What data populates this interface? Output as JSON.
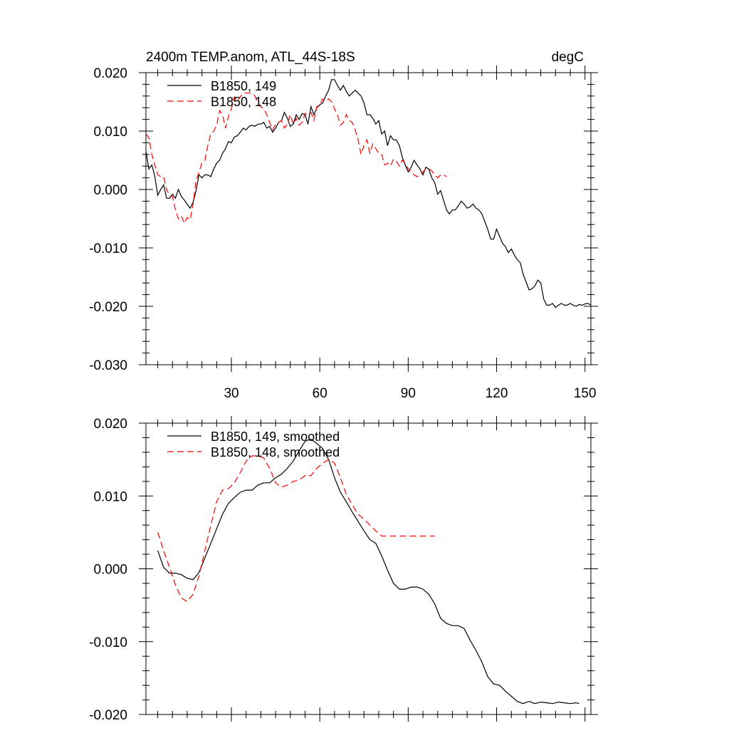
{
  "chart_data": [
    {
      "type": "line",
      "title": "2400m TEMP.anom, ATL_44S-18S",
      "units": "degC",
      "xlim": [
        1,
        152
      ],
      "ylim": [
        -0.03,
        0.02
      ],
      "xticks": [
        30,
        60,
        90,
        120,
        150
      ],
      "xtick_labels": [
        "30",
        "60",
        "90",
        "120",
        "150"
      ],
      "yticks": [
        -0.03,
        -0.02,
        -0.01,
        0.0,
        0.01,
        0.02
      ],
      "ytick_labels": [
        "-0.030",
        "-0.020",
        "-0.010",
        "0.000",
        "0.010",
        "0.020"
      ],
      "legend_position": "top-left",
      "series": [
        {
          "name": "B1850, 149",
          "color": "#000000",
          "dash": "solid",
          "x": [
            1,
            2,
            3,
            4,
            5,
            6,
            7,
            8,
            9,
            10,
            11,
            12,
            13,
            14,
            15,
            16,
            17,
            18,
            19,
            20,
            21,
            22,
            23,
            24,
            25,
            26,
            27,
            28,
            29,
            30,
            31,
            32,
            33,
            34,
            35,
            36,
            37,
            38,
            39,
            40,
            41,
            42,
            43,
            44,
            45,
            46,
            47,
            48,
            49,
            50,
            51,
            52,
            53,
            54,
            55,
            56,
            57,
            58,
            59,
            60,
            61,
            62,
            63,
            64,
            65,
            66,
            67,
            68,
            69,
            70,
            71,
            72,
            73,
            74,
            75,
            76,
            77,
            78,
            79,
            80,
            81,
            82,
            83,
            84,
            85,
            86,
            87,
            88,
            89,
            90,
            91,
            92,
            93,
            94,
            95,
            96,
            97,
            98,
            99,
            100,
            101,
            102,
            103,
            104,
            105,
            106,
            107,
            108,
            109,
            110,
            111,
            112,
            113,
            114,
            115,
            116,
            117,
            118,
            119,
            120,
            121,
            122,
            123,
            124,
            125,
            126,
            127,
            128,
            129,
            130,
            131,
            132,
            133,
            134,
            135,
            136,
            137,
            138,
            139,
            140,
            141,
            142,
            143,
            144,
            145,
            146,
            147,
            148,
            149,
            150,
            151,
            152
          ],
          "y": [
            0.0065,
            0.0035,
            0.0042,
            0.0023,
            -0.001,
            0.0,
            0.0008,
            -0.0015,
            -0.0015,
            -0.0008,
            -0.0015,
            0.0,
            -0.0012,
            -0.0018,
            -0.0025,
            -0.0032,
            -0.0022,
            -0.0002,
            0.0025,
            0.002,
            0.0025,
            0.0025,
            0.0022,
            0.0035,
            0.0045,
            0.005,
            0.0062,
            0.007,
            0.0082,
            0.008,
            0.009,
            0.0092,
            0.0098,
            0.0105,
            0.0102,
            0.0108,
            0.011,
            0.0108,
            0.0112,
            0.0112,
            0.0115,
            0.0105,
            0.0108,
            0.0098,
            0.0105,
            0.0115,
            0.0118,
            0.0132,
            0.0122,
            0.0108,
            0.0112,
            0.0128,
            0.012,
            0.013,
            0.0128,
            0.0112,
            0.0142,
            0.0128,
            0.014,
            0.0145,
            0.0148,
            0.016,
            0.017,
            0.0188,
            0.0188,
            0.0178,
            0.017,
            0.0178,
            0.0168,
            0.016,
            0.0165,
            0.017,
            0.0165,
            0.016,
            0.0148,
            0.0128,
            0.0128,
            0.0122,
            0.0112,
            0.0118,
            0.0095,
            0.01,
            0.0075,
            0.0092,
            0.0085,
            0.0085,
            0.0075,
            0.0055,
            0.0042,
            0.003,
            0.0038,
            0.005,
            0.0042,
            0.0035,
            0.0025,
            0.0038,
            0.0035,
            0.002,
            0.0012,
            -0.0008,
            -0.0002,
            -0.0018,
            -0.0035,
            -0.0042,
            -0.0035,
            -0.0035,
            -0.0028,
            -0.002,
            -0.0025,
            -0.0032,
            -0.003,
            -0.0025,
            -0.0032,
            -0.0035,
            -0.0042,
            -0.0055,
            -0.0068,
            -0.0085,
            -0.0085,
            -0.0068,
            -0.008,
            -0.0092,
            -0.0098,
            -0.0108,
            -0.0102,
            -0.0112,
            -0.012,
            -0.0125,
            -0.0145,
            -0.0158,
            -0.0172,
            -0.017,
            -0.0165,
            -0.0155,
            -0.016,
            -0.0188,
            -0.0198,
            -0.0198,
            -0.0195,
            -0.0202,
            -0.0198,
            -0.0195,
            -0.0198,
            -0.0198,
            -0.0195,
            -0.0198,
            -0.02,
            -0.0197,
            -0.0198,
            -0.0196,
            -0.0195,
            -0.0198
          ]
        },
        {
          "name": "B1850, 148",
          "color": "#ff0000",
          "dash": "dashed",
          "x": [
            1,
            2,
            3,
            4,
            5,
            6,
            7,
            8,
            9,
            10,
            11,
            12,
            13,
            14,
            15,
            16,
            17,
            18,
            19,
            20,
            21,
            22,
            23,
            24,
            25,
            26,
            27,
            28,
            29,
            30,
            31,
            32,
            33,
            34,
            35,
            36,
            37,
            38,
            39,
            40,
            41,
            42,
            43,
            44,
            45,
            46,
            47,
            48,
            49,
            50,
            51,
            52,
            53,
            54,
            55,
            56,
            57,
            58,
            59,
            60,
            61,
            62,
            63,
            64,
            65,
            66,
            67,
            68,
            69,
            70,
            71,
            72,
            73,
            74,
            75,
            76,
            77,
            78,
            79,
            80,
            81,
            82,
            83,
            84,
            85,
            86,
            87,
            88,
            89,
            90,
            91,
            92,
            93,
            94,
            95,
            96,
            97,
            98,
            99,
            100,
            101,
            102,
            103
          ],
          "y": [
            0.0095,
            0.0088,
            0.006,
            0.0042,
            0.0025,
            0.0022,
            0.0022,
            0.0,
            -0.001,
            -0.0012,
            -0.0035,
            -0.005,
            -0.0045,
            -0.0058,
            -0.0048,
            -0.0052,
            -0.0025,
            0.0015,
            0.003,
            0.0045,
            0.005,
            0.0075,
            0.0095,
            0.01,
            0.011,
            0.0135,
            0.0128,
            0.0105,
            0.0125,
            0.0138,
            0.0158,
            0.0152,
            0.0158,
            0.0165,
            0.0165,
            0.0165,
            0.0165,
            0.016,
            0.0148,
            0.0142,
            0.0138,
            0.0128,
            0.0115,
            0.0102,
            0.0112,
            0.0115,
            0.0118,
            0.0105,
            0.0112,
            0.0128,
            0.0112,
            0.0122,
            0.011,
            0.0115,
            0.013,
            0.0128,
            0.0132,
            0.0118,
            0.0142,
            0.0145,
            0.0155,
            0.0152,
            0.0155,
            0.015,
            0.0138,
            0.0128,
            0.011,
            0.0115,
            0.0128,
            0.0118,
            0.0115,
            0.0102,
            0.0085,
            0.006,
            0.0075,
            0.0085,
            0.0062,
            0.0078,
            0.007,
            0.0062,
            0.006,
            0.0042,
            0.0045,
            0.004,
            0.0052,
            0.0048,
            0.004,
            0.005,
            0.0045,
            0.0035,
            0.003,
            0.0025,
            0.0022,
            0.0025,
            0.003,
            0.0035,
            0.0035,
            0.0032,
            0.0025,
            0.002,
            0.0025,
            0.0025,
            0.0022
          ]
        }
      ]
    },
    {
      "type": "line",
      "title": "",
      "units": "",
      "xlim": [
        1,
        152
      ],
      "ylim": [
        -0.02,
        0.02
      ],
      "xticks": [
        30,
        60,
        90,
        120,
        150
      ],
      "xtick_labels": [],
      "yticks": [
        -0.02,
        -0.01,
        0.0,
        0.01,
        0.02
      ],
      "ytick_labels": [
        "-0.020",
        "-0.010",
        "0.000",
        "0.010",
        "0.020"
      ],
      "legend_position": "top-left",
      "series": [
        {
          "name": "B1850, 149, smoothed",
          "color": "#000000",
          "dash": "solid",
          "x": [
            5,
            7,
            9,
            11,
            13,
            15,
            17,
            19,
            21,
            23,
            25,
            27,
            29,
            31,
            33,
            35,
            37,
            39,
            41,
            43,
            45,
            47,
            49,
            51,
            53,
            55,
            57,
            59,
            61,
            63,
            65,
            67,
            69,
            71,
            73,
            75,
            77,
            79,
            81,
            83,
            85,
            87,
            89,
            91,
            93,
            95,
            97,
            99,
            101,
            103,
            105,
            107,
            109,
            111,
            113,
            115,
            117,
            119,
            121,
            123,
            125,
            127,
            129,
            131,
            133,
            135,
            137,
            139,
            141,
            143,
            145,
            147,
            148
          ],
          "y": [
            0.0025,
            0.0002,
            -0.0006,
            -0.0006,
            -0.0008,
            -0.0013,
            -0.0015,
            -0.0005,
            0.0015,
            0.0035,
            0.0055,
            0.0075,
            0.009,
            0.0098,
            0.0105,
            0.0108,
            0.0108,
            0.0115,
            0.0118,
            0.0118,
            0.0125,
            0.013,
            0.0138,
            0.0148,
            0.0162,
            0.0175,
            0.0178,
            0.0172,
            0.0165,
            0.015,
            0.0125,
            0.0105,
            0.0092,
            0.0078,
            0.0065,
            0.0052,
            0.004,
            0.0035,
            0.0018,
            -0.0002,
            -0.002,
            -0.0028,
            -0.0028,
            -0.0025,
            -0.0025,
            -0.0028,
            -0.0035,
            -0.0048,
            -0.0068,
            -0.0075,
            -0.0078,
            -0.0078,
            -0.0082,
            -0.0098,
            -0.0112,
            -0.0128,
            -0.0148,
            -0.0158,
            -0.016,
            -0.0168,
            -0.0175,
            -0.0182,
            -0.0185,
            -0.0182,
            -0.0185,
            -0.0183,
            -0.0184,
            -0.0185,
            -0.0183,
            -0.0184,
            -0.0185,
            -0.0184,
            -0.0185
          ]
        },
        {
          "name": "B1850, 148, smoothed",
          "color": "#ff0000",
          "dash": "dashed",
          "x": [
            5,
            7,
            9,
            11,
            13,
            15,
            17,
            19,
            21,
            23,
            25,
            27,
            29,
            31,
            33,
            35,
            37,
            39,
            41,
            43,
            45,
            47,
            49,
            51,
            53,
            55,
            57,
            59,
            61,
            63,
            65,
            67,
            69,
            71,
            73,
            75,
            77,
            79,
            81,
            83,
            85,
            87,
            89,
            91,
            93,
            95,
            97,
            99
          ],
          "y": [
            0.005,
            0.0025,
            0.0002,
            -0.0022,
            -0.004,
            -0.0045,
            -0.0035,
            -0.001,
            0.0025,
            0.006,
            0.0092,
            0.0108,
            0.011,
            0.0118,
            0.0132,
            0.0148,
            0.0155,
            0.0155,
            0.0152,
            0.0138,
            0.0118,
            0.0112,
            0.0115,
            0.012,
            0.0122,
            0.0128,
            0.0128,
            0.0138,
            0.0145,
            0.015,
            0.0145,
            0.0125,
            0.0102,
            0.0088,
            0.0075,
            0.0068,
            0.006,
            0.0052,
            0.0045,
            0.0045,
            0.0045,
            0.0045,
            0.0045,
            0.0045,
            0.0045,
            0.0045,
            0.0045,
            0.0045
          ]
        }
      ]
    }
  ]
}
